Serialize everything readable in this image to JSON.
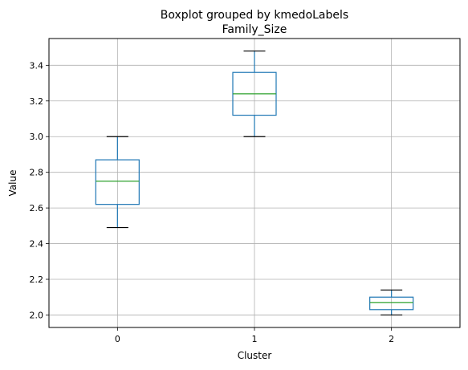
{
  "chart_data": {
    "type": "boxplot",
    "suptitle": "Boxplot grouped by kmedoLabels",
    "title": "Family_Size",
    "xlabel": "Cluster",
    "ylabel": "Value",
    "categories": [
      "0",
      "1",
      "2"
    ],
    "ylim": [
      1.93,
      3.55
    ],
    "yticks": [
      "2.0",
      "2.2",
      "2.4",
      "2.6",
      "2.8",
      "3.0",
      "3.2",
      "3.4"
    ],
    "ytick_values": [
      2.0,
      2.2,
      2.4,
      2.6,
      2.8,
      3.0,
      3.2,
      3.4
    ],
    "grid": true,
    "boxes": [
      {
        "category": "0",
        "whisker_low": 2.49,
        "q1": 2.62,
        "median": 2.75,
        "q3": 2.87,
        "whisker_high": 3.0
      },
      {
        "category": "1",
        "whisker_low": 3.0,
        "q1": 3.12,
        "median": 3.24,
        "q3": 3.36,
        "whisker_high": 3.48
      },
      {
        "category": "2",
        "whisker_low": 2.0,
        "q1": 2.03,
        "median": 2.07,
        "q3": 2.1,
        "whisker_high": 2.14
      }
    ],
    "colors": {
      "box": "#1f77b4",
      "median": "#2ca02c",
      "whisker_cap": "#000000",
      "grid": "#b0b0b0"
    }
  }
}
